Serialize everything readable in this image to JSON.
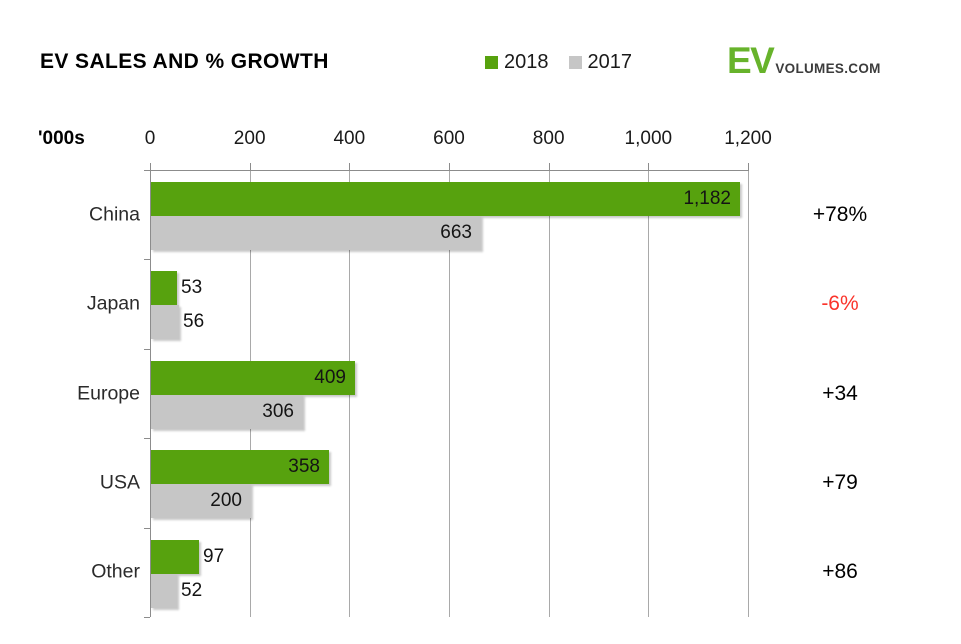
{
  "header": {
    "title": "EV SALES AND % GROWTH"
  },
  "legend": {
    "items": [
      {
        "label": "2018",
        "color": "#57A20E"
      },
      {
        "label": "2017",
        "color": "#C6C6C6"
      }
    ]
  },
  "logo": {
    "primary": "EV",
    "secondary": "VOLUMES.COM",
    "primary_color": "#67B32B",
    "secondary_color": "#3C3C3C"
  },
  "colors": {
    "bar_2018": "#57A20E",
    "bar_2017": "#C6C6C6",
    "axis": "#8C8C8C",
    "grid": "#A9A9A9",
    "negative_growth": "#FA342B",
    "positive_growth": "#000000"
  },
  "chart_data": {
    "type": "bar",
    "orientation": "horizontal",
    "title": "EV SALES AND % GROWTH",
    "unit_label": "'000s",
    "xlim": [
      0,
      1200
    ],
    "xticks": [
      "0",
      "200",
      "400",
      "600",
      "800",
      "1,000",
      "1,200"
    ],
    "grid": "vertical",
    "legend_position": "top",
    "categories": [
      "China",
      "Japan",
      "Europe",
      "USA",
      "Other"
    ],
    "series": [
      {
        "name": "2018",
        "color": "#57A20E",
        "values": [
          1182,
          53,
          409,
          358,
          97
        ],
        "labels": [
          "1,182",
          "53",
          "409",
          "358",
          "97"
        ]
      },
      {
        "name": "2017",
        "color": "#C6C6C6",
        "values": [
          663,
          56,
          306,
          200,
          52
        ],
        "labels": [
          "663",
          "56",
          "306",
          "200",
          "52"
        ]
      }
    ],
    "growth": [
      {
        "label": "+78%",
        "negative": false
      },
      {
        "label": "-6%",
        "negative": true
      },
      {
        "label": "+34",
        "negative": false
      },
      {
        "label": "+79",
        "negative": false
      },
      {
        "label": "+86",
        "negative": false
      }
    ]
  }
}
